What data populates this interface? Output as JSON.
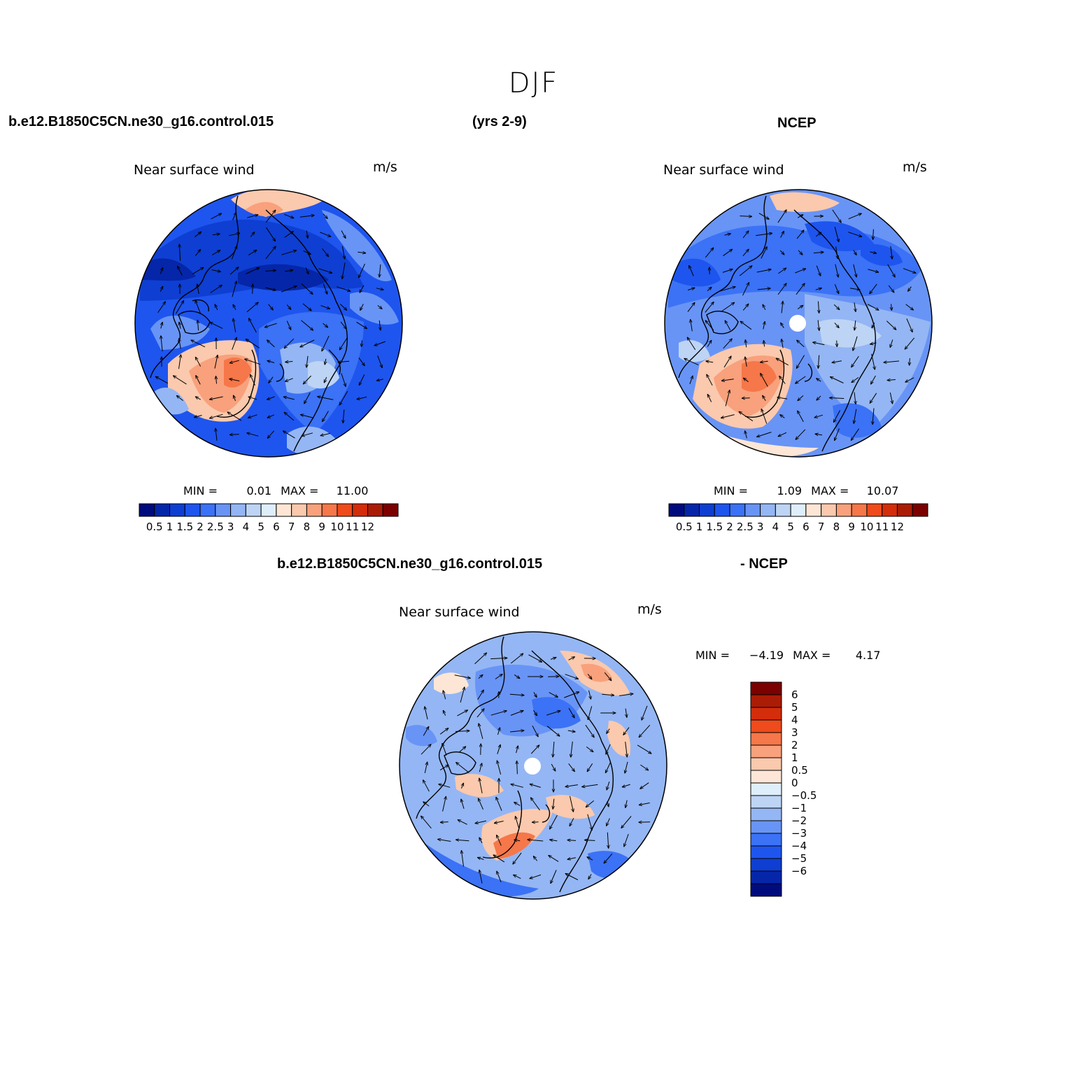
{
  "figure": {
    "title": "DJF",
    "case_name": "b.e12.B1850C5CN.ne30_g16.control.015",
    "years": "(yrs 2-9)",
    "obs_name": "NCEP",
    "diff_case": "b.e12.B1850C5CN.ne30_g16.control.015",
    "diff_obs": "- NCEP"
  },
  "panels": [
    {
      "id": "model",
      "label": "Near surface wind",
      "unit": "m/s",
      "min_label": "MIN =",
      "min": "0.01",
      "max_label": "MAX =",
      "max": "11.00"
    },
    {
      "id": "obs",
      "label": "Near surface wind",
      "unit": "m/s",
      "min_label": "MIN =",
      "min": "1.09",
      "max_label": "MAX =",
      "max": "10.07"
    },
    {
      "id": "diff",
      "label": "Near surface wind",
      "unit": "m/s",
      "min_label": "MIN =",
      "min": "−4.19",
      "max_label": "MAX =",
      "max": "4.17"
    }
  ],
  "colorbar_abs": {
    "colors": [
      "#000c7d",
      "#0526a8",
      "#0e3fd2",
      "#1e55ee",
      "#3b72f6",
      "#6894f6",
      "#94b6f4",
      "#bdd4f5",
      "#dfeefb",
      "#fde6d6",
      "#fbc9ad",
      "#f8a17c",
      "#f67749",
      "#ef4b1c",
      "#d42d0b",
      "#ab1c06",
      "#7b0000"
    ],
    "labels": [
      "0.5",
      "1",
      "1.5",
      "2",
      "2.5",
      "3",
      "4",
      "5",
      "6",
      "7",
      "8",
      "9",
      "10",
      "11",
      "12"
    ]
  },
  "colorbar_diff": {
    "colors": [
      "#000c7d",
      "#0526a8",
      "#0e3fd2",
      "#1e55ee",
      "#3b72f6",
      "#6894f6",
      "#94b6f4",
      "#bdd4f5",
      "#dfeefb",
      "#fde6d6",
      "#fbc9ad",
      "#f8a17c",
      "#f67749",
      "#ef4b1c",
      "#d42d0b",
      "#ab1c06",
      "#7b0000"
    ],
    "labels": [
      "6",
      "5",
      "4",
      "3",
      "2",
      "1",
      "0.5",
      "0",
      "−0.5",
      "−1",
      "−2",
      "−3",
      "−4",
      "−5",
      "−6"
    ]
  }
}
